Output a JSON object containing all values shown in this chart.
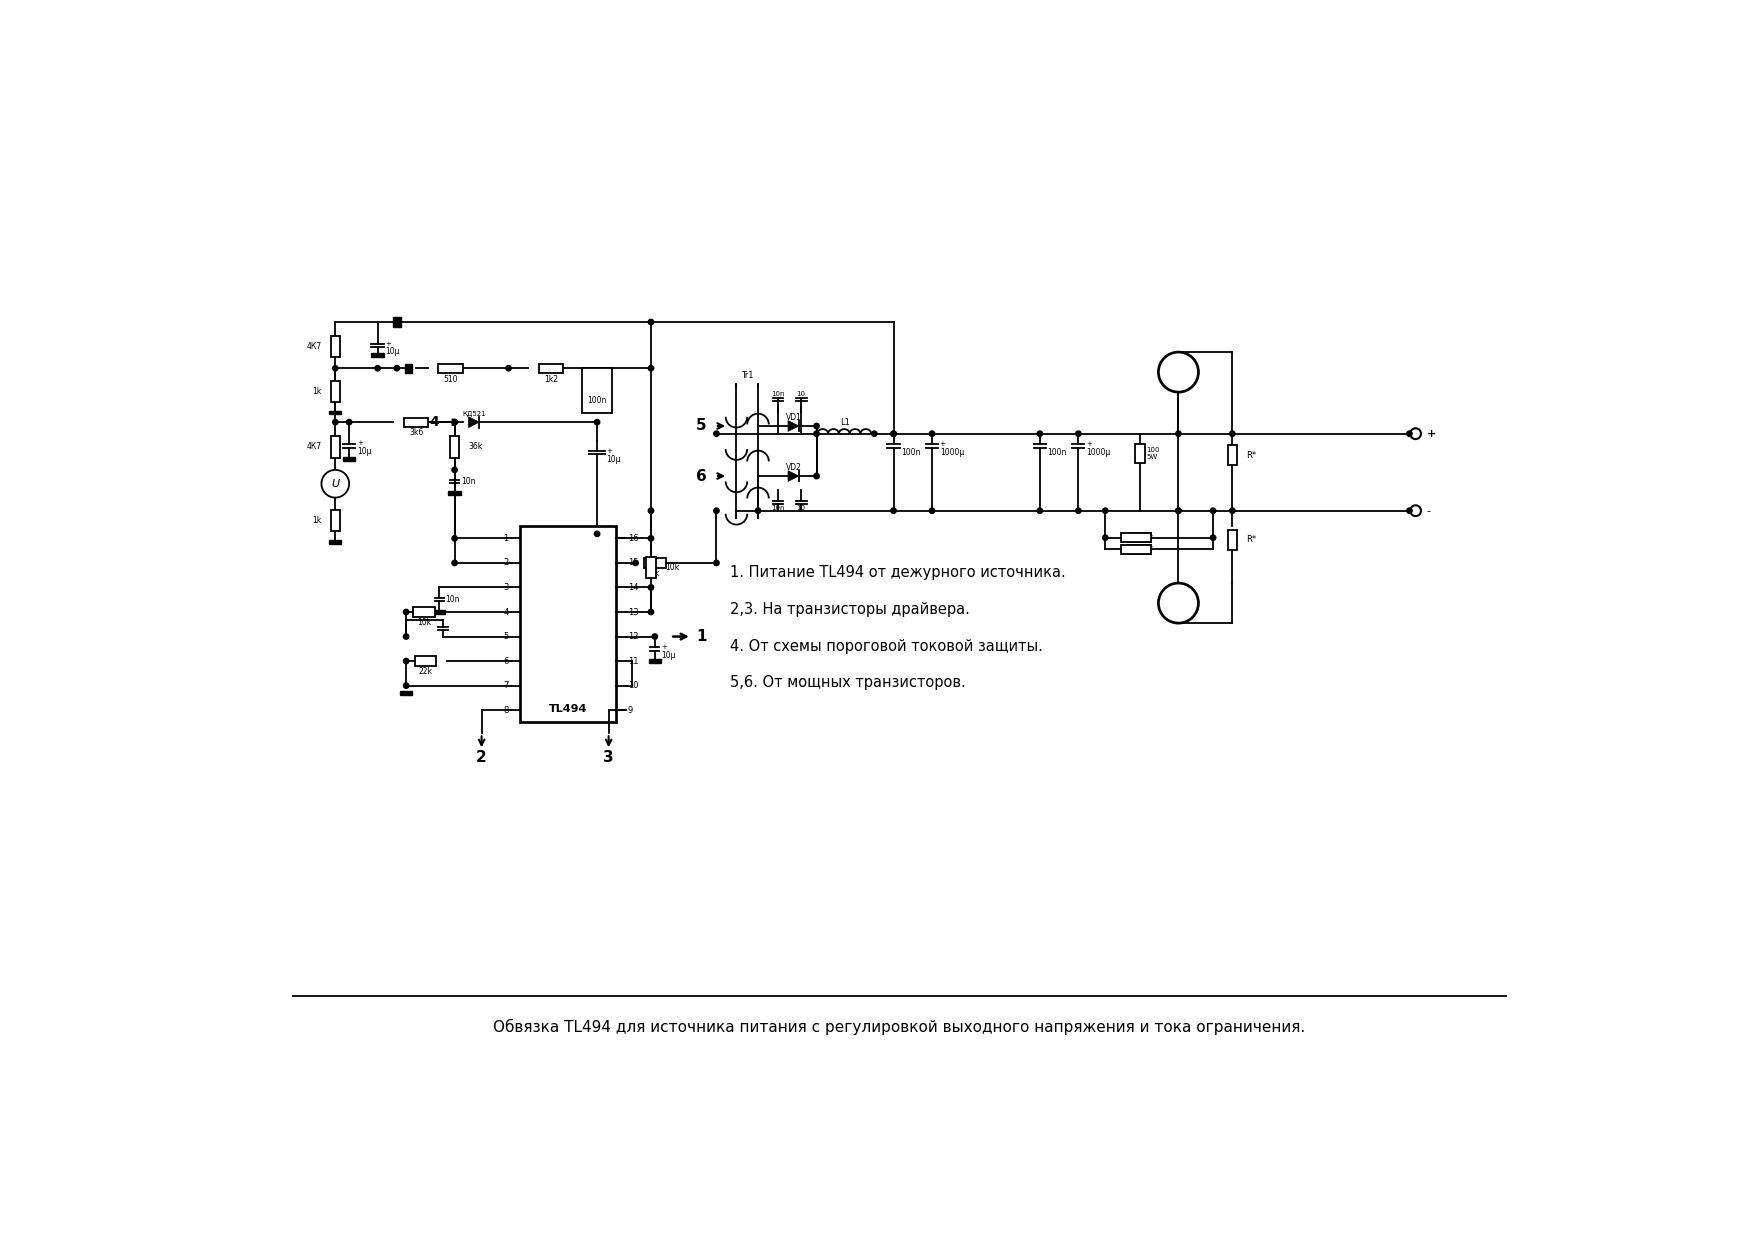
{
  "title": "Обвязка TL494 для источника питания с регулировкой выходного напряжения и тока ограничения.",
  "note1": "1. Питание TL494 от дежурного источника.",
  "note2": "2,3. На транзисторы драйвера.",
  "note3": "4. От схемы пороговой токовой защиты.",
  "note4": "5,6. От мощных транзисторов.",
  "bg_color": "#ffffff",
  "line_color": "#000000",
  "lw": 1.3,
  "fig_w": 17.54,
  "fig_h": 12.4
}
